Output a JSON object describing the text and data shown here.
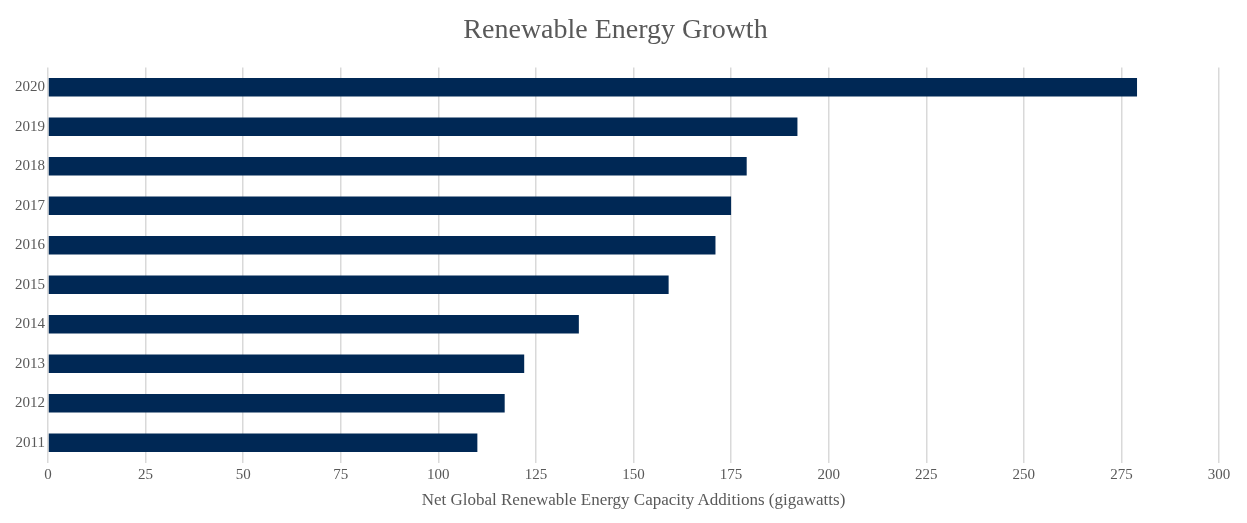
{
  "chart_data": {
    "type": "bar",
    "orientation": "horizontal",
    "title": "Renewable Energy Growth",
    "xlabel": "Net Global Renewable Energy Capacity Additions (gigawatts)",
    "categories": [
      "2020",
      "2019",
      "2018",
      "2017",
      "2016",
      "2015",
      "2014",
      "2013",
      "2012",
      "2011"
    ],
    "values": [
      279,
      192,
      179,
      175,
      171,
      159,
      136,
      122,
      117,
      110
    ],
    "color": "#002855",
    "xlim": [
      0,
      300
    ],
    "xticks": [
      0,
      25,
      50,
      75,
      100,
      125,
      150,
      175,
      200,
      225,
      250,
      275,
      300
    ],
    "grid": "x",
    "legend": false
  }
}
